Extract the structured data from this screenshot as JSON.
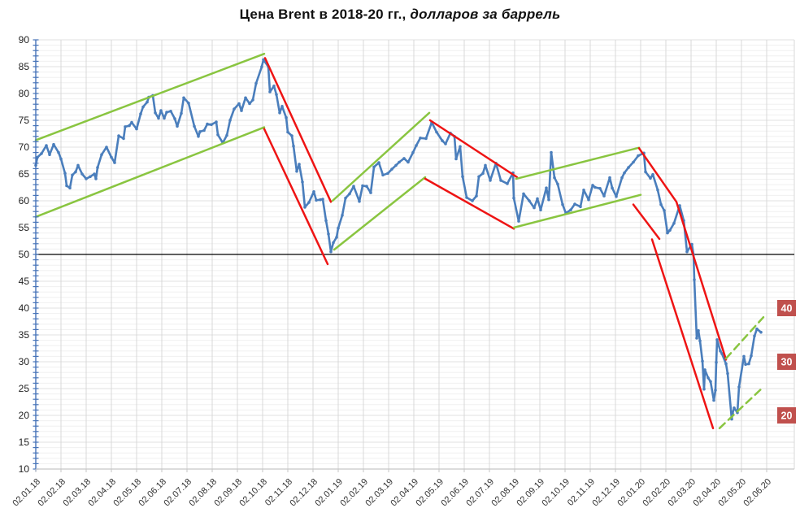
{
  "chart": {
    "title_bold": "Цена Brent в 2018-20 гг.,",
    "title_italic": " долларов за баррель"
  },
  "chart_data": {
    "type": "line",
    "title": "Цена Brent в 2018-20 гг., долларов за баррель",
    "xlabel": "",
    "ylabel": "",
    "y_min": 10,
    "y_max": 90,
    "y_tick_step": 5,
    "y_minor_step": 1,
    "grid": true,
    "legend": "none",
    "reference_line_y": 50,
    "axis_color": "#4673b8",
    "x_axis_color": "#c6c6c6",
    "grid_major_color": "#e2e2e2",
    "grid_minor_color": "#f0f0f0",
    "grid_vert_color": "#d8d8d8",
    "label_color": "#333333",
    "x_tick_labels": [
      "02.01.18",
      "02.02.18",
      "02.03.18",
      "02.04.18",
      "02.05.18",
      "02.06.18",
      "02.07.18",
      "02.08.18",
      "02.09.18",
      "02.10.18",
      "02.11.18",
      "02.12.18",
      "02.01.19",
      "02.02.19",
      "02.03.19",
      "02.04.19",
      "02.05.19",
      "02.06.19",
      "02.07.19",
      "02.08.19",
      "02.09.19",
      "02.10.19",
      "02.11.19",
      "02.12.19",
      "02.01.20",
      "02.02.20",
      "02.03.20",
      "02.04.20",
      "02.05.20",
      "02.06.20"
    ],
    "series": [
      {
        "name": "Brent price",
        "color": "#4a7ebc",
        "points": [
          [
            "02.01.18",
            66.6
          ],
          [
            "04.01.18",
            68.1
          ],
          [
            "09.01.18",
            68.8
          ],
          [
            "15.01.18",
            70.3
          ],
          [
            "19.01.18",
            68.6
          ],
          [
            "24.01.18",
            70.5
          ],
          [
            "30.01.18",
            69.0
          ],
          [
            "02.02.18",
            67.8
          ],
          [
            "07.02.18",
            65.1
          ],
          [
            "09.02.18",
            62.8
          ],
          [
            "13.02.18",
            62.4
          ],
          [
            "16.02.18",
            64.8
          ],
          [
            "20.02.18",
            65.4
          ],
          [
            "23.02.18",
            66.6
          ],
          [
            "28.02.18",
            65.0
          ],
          [
            "02.03.18",
            64.1
          ],
          [
            "07.03.18",
            64.5
          ],
          [
            "12.03.18",
            65.0
          ],
          [
            "14.03.18",
            64.1
          ],
          [
            "16.03.18",
            66.2
          ],
          [
            "21.03.18",
            68.6
          ],
          [
            "27.03.18",
            70.0
          ],
          [
            "02.04.18",
            68.1
          ],
          [
            "06.04.18",
            67.1
          ],
          [
            "11.04.18",
            72.1
          ],
          [
            "17.04.18",
            71.6
          ],
          [
            "19.04.18",
            73.8
          ],
          [
            "24.04.18",
            74.0
          ],
          [
            "27.04.18",
            74.6
          ],
          [
            "02.05.18",
            73.4
          ],
          [
            "07.05.18",
            76.2
          ],
          [
            "10.05.18",
            77.5
          ],
          [
            "15.05.18",
            78.4
          ],
          [
            "17.05.18",
            79.3
          ],
          [
            "22.05.18",
            79.6
          ],
          [
            "25.05.18",
            76.4
          ],
          [
            "29.05.18",
            75.4
          ],
          [
            "01.06.18",
            76.8
          ],
          [
            "05.06.18",
            75.4
          ],
          [
            "08.06.18",
            76.5
          ],
          [
            "13.06.18",
            76.7
          ],
          [
            "18.06.18",
            75.3
          ],
          [
            "21.06.18",
            73.9
          ],
          [
            "26.06.18",
            76.3
          ],
          [
            "29.06.18",
            79.2
          ],
          [
            "04.07.18",
            78.2
          ],
          [
            "11.07.18",
            73.9
          ],
          [
            "16.07.18",
            72.0
          ],
          [
            "18.07.18",
            72.9
          ],
          [
            "23.07.18",
            73.1
          ],
          [
            "27.07.18",
            74.3
          ],
          [
            "01.08.18",
            74.2
          ],
          [
            "07.08.18",
            74.7
          ],
          [
            "09.08.18",
            72.3
          ],
          [
            "15.08.18",
            70.8
          ],
          [
            "20.08.18",
            72.2
          ],
          [
            "24.08.18",
            75.0
          ],
          [
            "29.08.18",
            77.1
          ],
          [
            "04.09.18",
            78.1
          ],
          [
            "07.09.18",
            76.8
          ],
          [
            "12.09.18",
            79.2
          ],
          [
            "17.09.18",
            78.1
          ],
          [
            "21.09.18",
            78.8
          ],
          [
            "25.09.18",
            81.9
          ],
          [
            "01.10.18",
            85.0
          ],
          [
            "03.10.18",
            86.3
          ],
          [
            "09.10.18",
            85.0
          ],
          [
            "11.10.18",
            80.3
          ],
          [
            "16.10.18",
            81.4
          ],
          [
            "19.10.18",
            79.8
          ],
          [
            "23.10.18",
            76.4
          ],
          [
            "26.10.18",
            77.6
          ],
          [
            "31.10.18",
            75.5
          ],
          [
            "02.11.18",
            72.8
          ],
          [
            "07.11.18",
            72.1
          ],
          [
            "09.11.18",
            70.2
          ],
          [
            "13.11.18",
            65.5
          ],
          [
            "16.11.18",
            66.8
          ],
          [
            "20.11.18",
            63.5
          ],
          [
            "23.11.18",
            58.8
          ],
          [
            "28.11.18",
            59.7
          ],
          [
            "03.12.18",
            61.7
          ],
          [
            "06.12.18",
            60.1
          ],
          [
            "11.12.18",
            60.2
          ],
          [
            "14.12.18",
            60.3
          ],
          [
            "18.12.18",
            56.3
          ],
          [
            "21.12.18",
            53.8
          ],
          [
            "24.12.18",
            50.5
          ],
          [
            "27.12.18",
            52.2
          ],
          [
            "31.12.18",
            53.2
          ],
          [
            "02.01.19",
            54.9
          ],
          [
            "07.01.19",
            57.3
          ],
          [
            "11.01.19",
            60.5
          ],
          [
            "16.01.19",
            61.3
          ],
          [
            "21.01.19",
            62.7
          ],
          [
            "28.01.19",
            59.9
          ],
          [
            "01.02.19",
            62.8
          ],
          [
            "06.02.19",
            62.7
          ],
          [
            "11.02.19",
            61.5
          ],
          [
            "15.02.19",
            66.3
          ],
          [
            "21.02.19",
            67.1
          ],
          [
            "26.02.19",
            64.8
          ],
          [
            "01.03.19",
            65.1
          ],
          [
            "06.03.19",
            65.9
          ],
          [
            "11.03.19",
            66.6
          ],
          [
            "15.03.19",
            67.2
          ],
          [
            "21.03.19",
            67.9
          ],
          [
            "26.03.19",
            67.2
          ],
          [
            "01.04.19",
            69.0
          ],
          [
            "05.04.19",
            70.3
          ],
          [
            "10.04.19",
            71.7
          ],
          [
            "17.04.19",
            71.6
          ],
          [
            "24.04.19",
            74.6
          ],
          [
            "30.04.19",
            72.8
          ],
          [
            "06.05.19",
            71.2
          ],
          [
            "10.05.19",
            70.6
          ],
          [
            "16.05.19",
            72.6
          ],
          [
            "21.05.19",
            72.0
          ],
          [
            "23.05.19",
            67.8
          ],
          [
            "28.05.19",
            70.1
          ],
          [
            "31.05.19",
            64.5
          ],
          [
            "05.06.19",
            60.6
          ],
          [
            "12.06.19",
            60.0
          ],
          [
            "17.06.19",
            60.9
          ],
          [
            "20.06.19",
            64.5
          ],
          [
            "25.06.19",
            65.1
          ],
          [
            "28.06.19",
            66.6
          ],
          [
            "03.07.19",
            63.8
          ],
          [
            "10.07.19",
            67.0
          ],
          [
            "16.07.19",
            63.8
          ],
          [
            "24.07.19",
            63.2
          ],
          [
            "31.07.19",
            65.2
          ],
          [
            "01.08.19",
            60.5
          ],
          [
            "07.08.19",
            56.2
          ],
          [
            "13.08.19",
            61.3
          ],
          [
            "20.08.19",
            60.0
          ],
          [
            "26.08.19",
            58.7
          ],
          [
            "30.08.19",
            60.4
          ],
          [
            "03.09.19",
            58.3
          ],
          [
            "10.09.19",
            62.4
          ],
          [
            "13.09.19",
            60.2
          ],
          [
            "16.09.19",
            69.0
          ],
          [
            "20.09.19",
            64.3
          ],
          [
            "24.09.19",
            63.1
          ],
          [
            "30.09.19",
            59.3
          ],
          [
            "03.10.19",
            57.7
          ],
          [
            "09.10.19",
            58.3
          ],
          [
            "14.10.19",
            59.4
          ],
          [
            "21.10.19",
            58.9
          ],
          [
            "25.10.19",
            62.0
          ],
          [
            "31.10.19",
            60.2
          ],
          [
            "05.11.19",
            62.9
          ],
          [
            "08.11.19",
            62.5
          ],
          [
            "14.11.19",
            62.3
          ],
          [
            "19.11.19",
            60.9
          ],
          [
            "26.11.19",
            64.3
          ],
          [
            "29.11.19",
            62.4
          ],
          [
            "03.12.19",
            60.8
          ],
          [
            "10.12.19",
            64.3
          ],
          [
            "13.12.19",
            65.2
          ],
          [
            "18.12.19",
            66.2
          ],
          [
            "24.12.19",
            67.2
          ],
          [
            "30.12.19",
            68.4
          ],
          [
            "06.01.20",
            68.9
          ],
          [
            "08.01.20",
            65.4
          ],
          [
            "14.01.20",
            64.2
          ],
          [
            "17.01.20",
            64.9
          ],
          [
            "23.01.20",
            62.0
          ],
          [
            "27.01.20",
            59.3
          ],
          [
            "31.01.20",
            58.2
          ],
          [
            "04.02.20",
            54.0
          ],
          [
            "07.02.20",
            54.5
          ],
          [
            "12.02.20",
            55.8
          ],
          [
            "19.02.20",
            59.1
          ],
          [
            "24.02.20",
            56.3
          ],
          [
            "28.02.20",
            50.5
          ],
          [
            "03.03.20",
            51.9
          ],
          [
            "05.03.20",
            50.0
          ],
          [
            "06.03.20",
            45.3
          ],
          [
            "09.03.20",
            34.4
          ],
          [
            "11.03.20",
            35.8
          ],
          [
            "13.03.20",
            33.9
          ],
          [
            "16.03.20",
            30.1
          ],
          [
            "18.03.20",
            24.9
          ],
          [
            "19.03.20",
            28.5
          ],
          [
            "23.03.20",
            27.0
          ],
          [
            "26.03.20",
            26.3
          ],
          [
            "30.03.20",
            22.8
          ],
          [
            "01.04.20",
            24.7
          ],
          [
            "02.04.20",
            29.9
          ],
          [
            "03.04.20",
            34.1
          ],
          [
            "07.04.20",
            32.0
          ],
          [
            "09.04.20",
            31.5
          ],
          [
            "14.04.20",
            29.6
          ],
          [
            "16.04.20",
            27.8
          ],
          [
            "21.04.20",
            19.3
          ],
          [
            "22.04.20",
            20.4
          ],
          [
            "24.04.20",
            21.4
          ],
          [
            "28.04.20",
            20.5
          ],
          [
            "30.04.20",
            25.3
          ],
          [
            "05.05.20",
            31.0
          ],
          [
            "07.05.20",
            29.5
          ],
          [
            "11.05.20",
            29.6
          ],
          [
            "14.05.20",
            31.1
          ],
          [
            "18.05.20",
            34.8
          ],
          [
            "21.05.20",
            36.1
          ],
          [
            "26.05.20",
            35.5
          ]
        ]
      }
    ],
    "trendlines": [
      {
        "name": "up-channel-2018-top",
        "color": "#89c540",
        "dashed": false,
        "points": [
          [
            "02.01.18",
            71.3
          ],
          [
            "04.10.18",
            87.4
          ]
        ]
      },
      {
        "name": "up-channel-2018-bottom",
        "color": "#89c540",
        "dashed": false,
        "points": [
          [
            "02.01.18",
            57.0
          ],
          [
            "04.10.18",
            73.7
          ]
        ]
      },
      {
        "name": "down-channel-2018-top",
        "color": "#ee1414",
        "dashed": false,
        "points": [
          [
            "05.10.18",
            86.6
          ],
          [
            "24.12.18",
            59.8
          ]
        ]
      },
      {
        "name": "down-channel-2018-bottom",
        "color": "#ee1414",
        "dashed": false,
        "points": [
          [
            "04.10.18",
            73.4
          ],
          [
            "20.12.18",
            48.2
          ]
        ]
      },
      {
        "name": "up-channel-2019-top",
        "color": "#89c540",
        "dashed": false,
        "points": [
          [
            "26.12.18",
            60.0
          ],
          [
            "21.04.19",
            76.4
          ]
        ]
      },
      {
        "name": "up-channel-2019-bottom",
        "color": "#89c540",
        "dashed": false,
        "points": [
          [
            "28.12.18",
            50.9
          ],
          [
            "16.04.19",
            64.4
          ]
        ]
      },
      {
        "name": "down-channel-2019-top",
        "color": "#ee1414",
        "dashed": false,
        "points": [
          [
            "22.04.19",
            75.0
          ],
          [
            "05.08.19",
            64.4
          ]
        ]
      },
      {
        "name": "down-channel-2019-bottom",
        "color": "#ee1414",
        "dashed": false,
        "points": [
          [
            "16.04.19",
            64.1
          ],
          [
            "01.08.19",
            54.8
          ]
        ]
      },
      {
        "name": "up-channel-2019H2-top",
        "color": "#89c540",
        "dashed": false,
        "points": [
          [
            "04.08.19",
            64.1
          ],
          [
            "31.12.19",
            69.9
          ]
        ]
      },
      {
        "name": "up-channel-2019H2-bottom",
        "color": "#89c540",
        "dashed": false,
        "points": [
          [
            "01.08.19",
            55.0
          ],
          [
            "02.01.20",
            61.1
          ]
        ]
      },
      {
        "name": "down-channel-2020-top",
        "color": "#ee1414",
        "dashed": false,
        "points": [
          [
            "31.12.19",
            69.8
          ],
          [
            "15.02.20",
            59.8
          ],
          [
            "14.04.20",
            30.4
          ]
        ]
      },
      {
        "name": "down-channel-2020-bottom-1",
        "color": "#ee1414",
        "dashed": false,
        "points": [
          [
            "24.12.19",
            59.3
          ],
          [
            "25.01.20",
            52.9
          ]
        ]
      },
      {
        "name": "down-channel-2020-bottom-2",
        "color": "#ee1414",
        "dashed": false,
        "points": [
          [
            "16.01.20",
            52.8
          ],
          [
            "29.03.20",
            17.6
          ]
        ]
      },
      {
        "name": "up-channel-2020-top-dashed",
        "color": "#89c540",
        "dashed": true,
        "points": [
          [
            "14.04.20",
            30.6
          ],
          [
            "29.05.20",
            38.3
          ]
        ]
      },
      {
        "name": "up-channel-2020-bottom-dashed",
        "color": "#89c540",
        "dashed": true,
        "points": [
          [
            "06.04.20",
            17.6
          ],
          [
            "29.05.20",
            25.3
          ]
        ]
      }
    ],
    "level_badges": [
      {
        "label": "40",
        "value": 40
      },
      {
        "label": "30",
        "value": 30
      },
      {
        "label": "20",
        "value": 20
      }
    ],
    "badge_color": "#c0504d",
    "badge_text_color": "#ffffff"
  }
}
